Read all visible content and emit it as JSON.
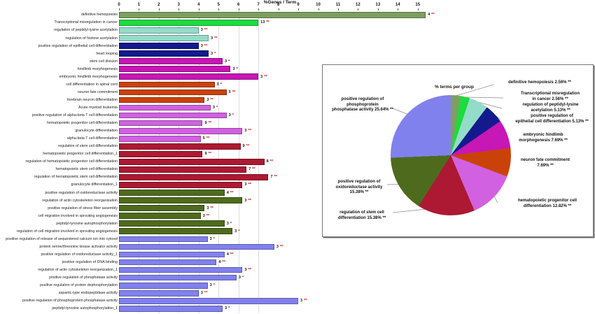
{
  "chart_data": [
    {
      "type": "bar",
      "title": "%Genes / Term",
      "orientation": "horizontal",
      "xlim": [
        0,
        15
      ],
      "xticks": [
        0,
        1,
        2,
        3,
        4,
        5,
        6,
        7,
        8,
        9,
        10,
        11,
        12,
        13,
        14,
        15
      ],
      "grid_values": [
        1,
        2,
        3,
        4,
        5,
        6,
        7
      ],
      "legend_note": "value = %Genes/Term bar length; genes = gene count label; sig = significance asterisks",
      "rows": [
        {
          "label": "definitive hemopoiesis",
          "value": 15.4,
          "genes": "4",
          "sig": "**",
          "group": "sage"
        },
        {
          "label": "Transcriptional misregulation in cancer",
          "value": 7.0,
          "genes": "13",
          "sig": "**",
          "group": "green"
        },
        {
          "label": "regulation of peptidyl-lysine acetylation",
          "value": 4.0,
          "genes": "3",
          "sig": "**",
          "group": "teal"
        },
        {
          "label": "regulation of histone acetylation",
          "value": 4.5,
          "genes": "3",
          "sig": "**",
          "group": "teal"
        },
        {
          "label": "positive regulation of epithelial cell differentiation",
          "value": 4.0,
          "genes": "3",
          "sig": "**",
          "group": "navy"
        },
        {
          "label": "heart looping",
          "value": 4.5,
          "genes": "3",
          "sig": "*",
          "group": "navy"
        },
        {
          "label": "stem cell division",
          "value": 5.2,
          "genes": "3",
          "sig": "*",
          "group": "magenta"
        },
        {
          "label": "hindlimb morphogenesis",
          "value": 5.6,
          "genes": "3",
          "sig": "*",
          "group": "magenta"
        },
        {
          "label": "embryonic hindlimb morphogenesis",
          "value": 7.0,
          "genes": "3",
          "sig": "**",
          "group": "magenta"
        },
        {
          "label": "cell differentiation in spinal cord",
          "value": 4.8,
          "genes": "3",
          "sig": "*",
          "group": "orange"
        },
        {
          "label": "neuron fate commitment",
          "value": 5.4,
          "genes": "5",
          "sig": "**",
          "group": "orange"
        },
        {
          "label": "forebrain neuron differentiation",
          "value": 4.3,
          "genes": "3",
          "sig": "**",
          "group": "orange"
        },
        {
          "label": "Acute myeloid leukemia",
          "value": 4.6,
          "genes": "3",
          "sig": "*",
          "group": "orchid"
        },
        {
          "label": "positive regulation of alpha-beta T cell differentiation",
          "value": 5.4,
          "genes": "3",
          "sig": "*",
          "group": "orchid"
        },
        {
          "label": "hematopoietic progenitor cell differentiation",
          "value": 4.2,
          "genes": "9",
          "sig": "**",
          "group": "orchid"
        },
        {
          "label": "granulocyte differentiation",
          "value": 6.2,
          "genes": "3",
          "sig": "**",
          "group": "orchid"
        },
        {
          "label": "alpha-beta T cell differentiation",
          "value": 4.1,
          "genes": "5",
          "sig": "**",
          "group": "orchid"
        },
        {
          "label": "regulation of stem cell differentiation",
          "value": 6.1,
          "genes": "9",
          "sig": "**",
          "group": "maroon"
        },
        {
          "label": "hematopoietic progenitor cell differentiation_1",
          "value": 4.2,
          "genes": "9",
          "sig": "**",
          "group": "maroon"
        },
        {
          "label": "regulation of hematopoietic progenitor cell differentiation",
          "value": 7.3,
          "genes": "8",
          "sig": "**",
          "group": "maroon"
        },
        {
          "label": "hematopoietic stem cell differentiation",
          "value": 6.4,
          "genes": "7",
          "sig": "**",
          "group": "maroon"
        },
        {
          "label": "regulation of hematopoietic stem cell differentiation",
          "value": 7.5,
          "genes": "7",
          "sig": "**",
          "group": "maroon"
        },
        {
          "label": "granulocyte differentiation_1",
          "value": 6.2,
          "genes": "3",
          "sig": "**",
          "group": "maroon"
        },
        {
          "label": "positive regulation of oxidoreductase activity",
          "value": 5.3,
          "genes": "4",
          "sig": "**",
          "group": "olive"
        },
        {
          "label": "regulation of actin cytoskeleton reorganization",
          "value": 6.2,
          "genes": "3",
          "sig": "**",
          "group": "olive"
        },
        {
          "label": "positive regulation of stress fiber assembly",
          "value": 4.3,
          "genes": "3",
          "sig": "**",
          "group": "olive"
        },
        {
          "label": "cell migration involved in sprouting angiogenesis",
          "value": 4.1,
          "genes": "3",
          "sig": "**",
          "group": "olive"
        },
        {
          "label": "peptidyl-tyrosine autophosphorylation",
          "value": 5.3,
          "genes": "3",
          "sig": "*",
          "group": "olive"
        },
        {
          "label": "regulation of cell migration involved in sprouting angiogenesis",
          "value": 5.7,
          "genes": "3",
          "sig": "*",
          "group": "olive"
        },
        {
          "label": "positive regulation of release of sequestered calcium ion into cytosol",
          "value": 4.45,
          "genes": "3",
          "sig": "*",
          "group": "periwinkle"
        },
        {
          "label": "protein serine/threonine kinase activator activity",
          "value": 7.8,
          "genes": "3",
          "sig": "**",
          "group": "periwinkle"
        },
        {
          "label": "positive regulation of oxidoreductase activity_1",
          "value": 5.3,
          "genes": "4",
          "sig": "**",
          "group": "periwinkle"
        },
        {
          "label": "positive regulation of DNA binding",
          "value": 4.9,
          "genes": "4",
          "sig": "**",
          "group": "periwinkle"
        },
        {
          "label": "regulation of actin cytoskeleton reorganization_1",
          "value": 6.2,
          "genes": "3",
          "sig": "**",
          "group": "periwinkle"
        },
        {
          "label": "positive regulation of phosphatase activity",
          "value": 5.9,
          "genes": "3",
          "sig": "*",
          "group": "periwinkle"
        },
        {
          "label": "positive regulation of protein dephosphorylation",
          "value": 4.45,
          "genes": "3",
          "sig": "*",
          "group": "periwinkle"
        },
        {
          "label": "aspartic-type endopeptidase activity",
          "value": 4.0,
          "genes": "3",
          "sig": "**",
          "group": "periwinkle"
        },
        {
          "label": "positive regulation of phosphoprotein phosphatase activity",
          "value": 9.0,
          "genes": "3",
          "sig": "**",
          "group": "periwinkle"
        },
        {
          "label": "peptidyl-tyrosine autophosphorylation_1",
          "value": 5.2,
          "genes": "3",
          "sig": "*",
          "group": "periwinkle"
        }
      ]
    },
    {
      "type": "pie",
      "title": "% terms per group",
      "slices": [
        {
          "pct": 2.56,
          "group": "sage",
          "label_lines": [
            "definitive hemopoiesis 2.56% **"
          ]
        },
        {
          "pct": 2.56,
          "group": "green",
          "label_lines": [
            "Transcriptional misregulation",
            "in cancer 2.56% **"
          ]
        },
        {
          "pct": 5.13,
          "group": "teal",
          "label_lines": [
            "regulation of peptidyl-lysine",
            "acetylation 5.13% **"
          ]
        },
        {
          "pct": 5.13,
          "group": "navy",
          "label_lines": [
            "positive regulation of",
            "epithelial cell differentiation 5.13% **"
          ]
        },
        {
          "pct": 7.69,
          "group": "magenta",
          "label_lines": [
            "embryonic hindlimb",
            "morphogenesis 7.69% **"
          ]
        },
        {
          "pct": 7.69,
          "group": "orange",
          "label_lines": [
            "neuron fate commitment",
            "7.69% **"
          ]
        },
        {
          "pct": 12.82,
          "group": "orchid",
          "label_lines": [
            "hematopoietic progenitor cell",
            "differentiation 12.82% **"
          ]
        },
        {
          "pct": 15.38,
          "group": "maroon",
          "label_lines": [
            "regulation of stem cell",
            "differentiation 15.38% **"
          ]
        },
        {
          "pct": 15.38,
          "group": "olive",
          "label_lines": [
            "positive regulation of",
            "oxidoreductase activity",
            "15.38% **"
          ]
        },
        {
          "pct": 25.64,
          "group": "periwinkle",
          "label_lines": [
            "positive regulation of",
            "phosphoprotein",
            "phosphatase activity 25.64% **"
          ]
        }
      ]
    }
  ],
  "group_colors": {
    "sage": "#7f9e62",
    "green": "#1edb3e",
    "teal": "#93dcc9",
    "navy": "#131a8e",
    "magenta": "#c717b4",
    "orange": "#ca420a",
    "orchid": "#d161e1",
    "maroon": "#ad1932",
    "olive": "#4e6b1d",
    "periwinkle": "#8181ee"
  },
  "star_color": "#dd0000"
}
